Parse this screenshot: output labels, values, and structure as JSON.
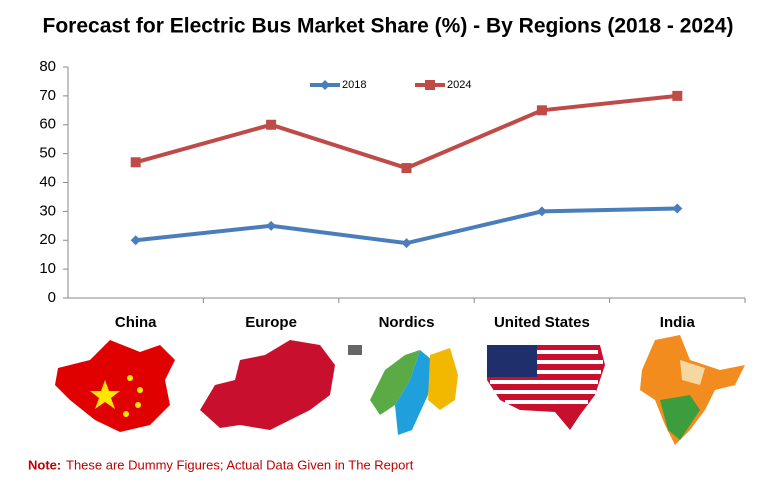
{
  "chart_data": {
    "type": "line",
    "title": "Forecast for Electric Bus Market Share (%)  - By Regions (2018  - 2024)",
    "categories": [
      "China",
      "Europe",
      "Nordics",
      "United States",
      "India"
    ],
    "series": [
      {
        "name": "2018",
        "color": "#4a7ebb",
        "marker": "diamond",
        "values": [
          20,
          25,
          19,
          30,
          31
        ]
      },
      {
        "name": "2024",
        "color": "#be4b48",
        "marker": "square",
        "values": [
          47,
          60,
          45,
          65,
          70
        ]
      }
    ],
    "ylim": [
      0,
      80
    ],
    "yticks": [
      0,
      10,
      20,
      30,
      40,
      50,
      60,
      70,
      80
    ],
    "grid": false,
    "note": {
      "label": "Note:",
      "text": "These are Dummy Figures; Actual Data Given in The Report"
    }
  }
}
